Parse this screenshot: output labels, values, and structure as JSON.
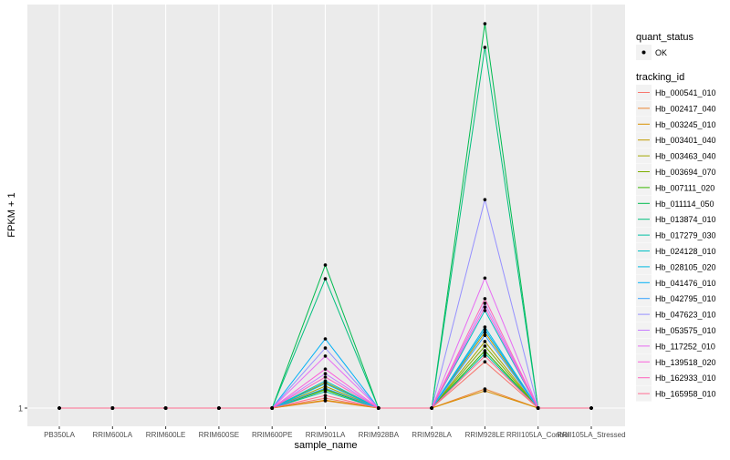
{
  "chart_data": {
    "type": "line",
    "title": "",
    "xlabel": "sample_name",
    "ylabel": "FPKM + 1",
    "y_ticks": [
      "1"
    ],
    "ylim": [
      -3.76,
      106.5
    ],
    "grid": true,
    "legend_position": "right",
    "categories": [
      "PB350LA",
      "RRIM600LA",
      "RRIM600LE",
      "RRIM600SE",
      "RRIM600PE",
      "RRIM901LA",
      "RRIM928BA",
      "RRIM928LA",
      "RRIM928LE",
      "RRII105LA_Control",
      "RRII105LA_Stressed"
    ],
    "shape_legend": {
      "title": "quant_status",
      "items": [
        "OK"
      ]
    },
    "color_legend_title": "tracking_id",
    "series": [
      {
        "name": "Hb_000541_010",
        "color": "#F8766D",
        "values": [
          1,
          1,
          1,
          1,
          1,
          3.6,
          1,
          1,
          13.1,
          1,
          1
        ]
      },
      {
        "name": "Hb_002417_040",
        "color": "#EA8331",
        "values": [
          1,
          1,
          1,
          1,
          1,
          2.9,
          1,
          1,
          6.0,
          1,
          1
        ]
      },
      {
        "name": "Hb_003245_010",
        "color": "#D89000",
        "values": [
          1,
          1,
          1,
          1,
          1,
          3.1,
          1,
          1,
          5.5,
          1,
          1
        ]
      },
      {
        "name": "Hb_003401_040",
        "color": "#C09B00",
        "values": [
          1,
          1,
          1,
          1,
          1,
          7.7,
          1,
          1,
          20.8,
          1,
          1
        ]
      },
      {
        "name": "Hb_003463_040",
        "color": "#A3A500",
        "values": [
          1,
          1,
          1,
          1,
          1,
          6.7,
          1,
          1,
          18.4,
          1,
          1
        ]
      },
      {
        "name": "Hb_003694_070",
        "color": "#7CAE00",
        "values": [
          1,
          1,
          1,
          1,
          1,
          6.0,
          1,
          1,
          17.2,
          1,
          1
        ]
      },
      {
        "name": "Hb_007111_020",
        "color": "#39B600",
        "values": [
          1,
          1,
          1,
          1,
          1,
          5.8,
          1,
          1,
          16.0,
          1,
          1
        ]
      },
      {
        "name": "Hb_011114_050",
        "color": "#00BB4E",
        "values": [
          1,
          1,
          1,
          1,
          1,
          38.4,
          1,
          1,
          101.5,
          1,
          1
        ]
      },
      {
        "name": "Hb_013874_010",
        "color": "#00BF7D",
        "values": [
          1,
          1,
          1,
          1,
          1,
          34.8,
          1,
          1,
          95.3,
          1,
          1
        ]
      },
      {
        "name": "Hb_017279_030",
        "color": "#00C1A3",
        "values": [
          1,
          1,
          1,
          1,
          1,
          5.3,
          1,
          1,
          15.3,
          1,
          1
        ]
      },
      {
        "name": "Hb_024128_010",
        "color": "#00BFC4",
        "values": [
          1,
          1,
          1,
          1,
          1,
          8.1,
          1,
          1,
          26.5,
          1,
          1
        ]
      },
      {
        "name": "Hb_028105_020",
        "color": "#00BAE0",
        "values": [
          1,
          1,
          1,
          1,
          1,
          7.4,
          1,
          1,
          22.2,
          1,
          1
        ]
      },
      {
        "name": "Hb_041476_010",
        "color": "#00B0F6",
        "values": [
          1,
          1,
          1,
          1,
          1,
          19.1,
          1,
          1,
          21.5,
          1,
          1
        ]
      },
      {
        "name": "Hb_042795_010",
        "color": "#35A2FF",
        "values": [
          1,
          1,
          1,
          1,
          1,
          6.2,
          1,
          1,
          20.0,
          1,
          1
        ]
      },
      {
        "name": "Hb_047623_010",
        "color": "#9590FF",
        "values": [
          1,
          1,
          1,
          1,
          1,
          16.7,
          1,
          1,
          55.5,
          1,
          1
        ]
      },
      {
        "name": "Hb_053575_010",
        "color": "#C77CFF",
        "values": [
          1,
          1,
          1,
          1,
          1,
          10.0,
          1,
          1,
          28.4,
          1,
          1
        ]
      },
      {
        "name": "Hb_117252_010",
        "color": "#E76BF3",
        "values": [
          1,
          1,
          1,
          1,
          1,
          14.6,
          1,
          1,
          35.0,
          1,
          1
        ]
      },
      {
        "name": "Hb_139518_020",
        "color": "#FA62DB",
        "values": [
          1,
          1,
          1,
          1,
          1,
          11.2,
          1,
          1,
          27.4,
          1,
          1
        ]
      },
      {
        "name": "Hb_162933_010",
        "color": "#FF62BC",
        "values": [
          1,
          1,
          1,
          1,
          1,
          9.1,
          1,
          1,
          29.6,
          1,
          1
        ]
      },
      {
        "name": "Hb_165958_010",
        "color": "#FF6C91",
        "values": [
          1,
          1,
          1,
          1,
          1,
          4.3,
          1,
          1,
          14.6,
          1,
          1
        ]
      }
    ]
  }
}
